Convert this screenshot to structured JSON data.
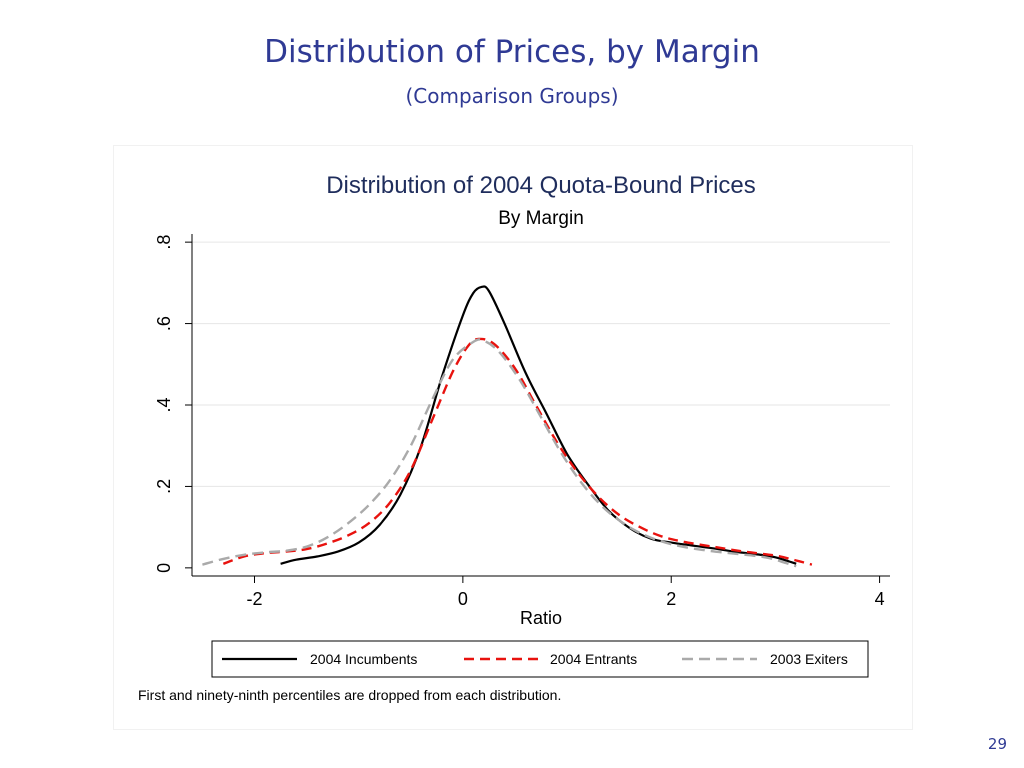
{
  "slide": {
    "title": "Distribution of Prices, by Margin",
    "subtitle": "(Comparison Groups)",
    "page_number": "29"
  },
  "chart_data": {
    "type": "line",
    "title": "Distribution of 2004 Quota-Bound Prices",
    "subtitle": "By Margin",
    "xlabel": "Ratio",
    "ylabel": "",
    "xlim": [
      -2.6,
      4.1
    ],
    "ylim": [
      -0.02,
      0.82
    ],
    "xticks": [
      {
        "value": -2,
        "label": "-2"
      },
      {
        "value": 0,
        "label": "0"
      },
      {
        "value": 2,
        "label": "2"
      },
      {
        "value": 4,
        "label": "4"
      }
    ],
    "yticks": [
      {
        "value": 0,
        "label": "0"
      },
      {
        "value": 0.2,
        "label": ".2"
      },
      {
        "value": 0.4,
        "label": ".4"
      },
      {
        "value": 0.6,
        "label": ".6"
      },
      {
        "value": 0.8,
        "label": ".8"
      }
    ],
    "grid": true,
    "legend_position": "bottom",
    "note": "First and ninety-ninth percentiles are dropped from each distribution.",
    "series": [
      {
        "name": "2004 Incumbents",
        "color": "#000000",
        "dash": "solid",
        "points": [
          [
            -1.75,
            0.01
          ],
          [
            -1.6,
            0.02
          ],
          [
            -1.4,
            0.028
          ],
          [
            -1.2,
            0.04
          ],
          [
            -1.0,
            0.062
          ],
          [
            -0.8,
            0.105
          ],
          [
            -0.6,
            0.18
          ],
          [
            -0.4,
            0.3
          ],
          [
            -0.2,
            0.47
          ],
          [
            0.0,
            0.62
          ],
          [
            0.1,
            0.675
          ],
          [
            0.18,
            0.69
          ],
          [
            0.25,
            0.68
          ],
          [
            0.4,
            0.6
          ],
          [
            0.6,
            0.48
          ],
          [
            0.8,
            0.38
          ],
          [
            1.0,
            0.28
          ],
          [
            1.2,
            0.205
          ],
          [
            1.4,
            0.14
          ],
          [
            1.6,
            0.098
          ],
          [
            1.8,
            0.072
          ],
          [
            2.0,
            0.062
          ],
          [
            2.2,
            0.055
          ],
          [
            2.4,
            0.048
          ],
          [
            2.6,
            0.04
          ],
          [
            2.8,
            0.034
          ],
          [
            3.0,
            0.026
          ],
          [
            3.2,
            0.01
          ]
        ]
      },
      {
        "name": "2004 Entrants",
        "color": "#e8120e",
        "dash": "dashed",
        "points": [
          [
            -2.3,
            0.01
          ],
          [
            -2.1,
            0.028
          ],
          [
            -1.9,
            0.036
          ],
          [
            -1.7,
            0.04
          ],
          [
            -1.5,
            0.046
          ],
          [
            -1.3,
            0.06
          ],
          [
            -1.1,
            0.08
          ],
          [
            -0.9,
            0.11
          ],
          [
            -0.7,
            0.16
          ],
          [
            -0.5,
            0.24
          ],
          [
            -0.3,
            0.36
          ],
          [
            -0.1,
            0.48
          ],
          [
            0.05,
            0.545
          ],
          [
            0.15,
            0.562
          ],
          [
            0.3,
            0.55
          ],
          [
            0.5,
            0.49
          ],
          [
            0.7,
            0.4
          ],
          [
            0.9,
            0.31
          ],
          [
            1.1,
            0.235
          ],
          [
            1.3,
            0.175
          ],
          [
            1.5,
            0.13
          ],
          [
            1.7,
            0.1
          ],
          [
            1.9,
            0.078
          ],
          [
            2.1,
            0.065
          ],
          [
            2.4,
            0.052
          ],
          [
            2.7,
            0.04
          ],
          [
            3.0,
            0.03
          ],
          [
            3.2,
            0.018
          ],
          [
            3.35,
            0.008
          ]
        ]
      },
      {
        "name": "2003 Exiters",
        "color": "#aaaaaa",
        "dash": "dashed",
        "points": [
          [
            -2.5,
            0.008
          ],
          [
            -2.3,
            0.022
          ],
          [
            -2.1,
            0.032
          ],
          [
            -1.9,
            0.038
          ],
          [
            -1.7,
            0.042
          ],
          [
            -1.5,
            0.052
          ],
          [
            -1.3,
            0.075
          ],
          [
            -1.1,
            0.11
          ],
          [
            -0.9,
            0.155
          ],
          [
            -0.7,
            0.215
          ],
          [
            -0.5,
            0.3
          ],
          [
            -0.3,
            0.41
          ],
          [
            -0.1,
            0.51
          ],
          [
            0.1,
            0.555
          ],
          [
            0.2,
            0.558
          ],
          [
            0.35,
            0.53
          ],
          [
            0.55,
            0.46
          ],
          [
            0.75,
            0.37
          ],
          [
            0.95,
            0.28
          ],
          [
            1.15,
            0.205
          ],
          [
            1.35,
            0.148
          ],
          [
            1.55,
            0.108
          ],
          [
            1.75,
            0.08
          ],
          [
            2.0,
            0.058
          ],
          [
            2.3,
            0.044
          ],
          [
            2.6,
            0.035
          ],
          [
            2.9,
            0.026
          ],
          [
            3.1,
            0.012
          ],
          [
            3.2,
            0.004
          ]
        ]
      }
    ]
  }
}
